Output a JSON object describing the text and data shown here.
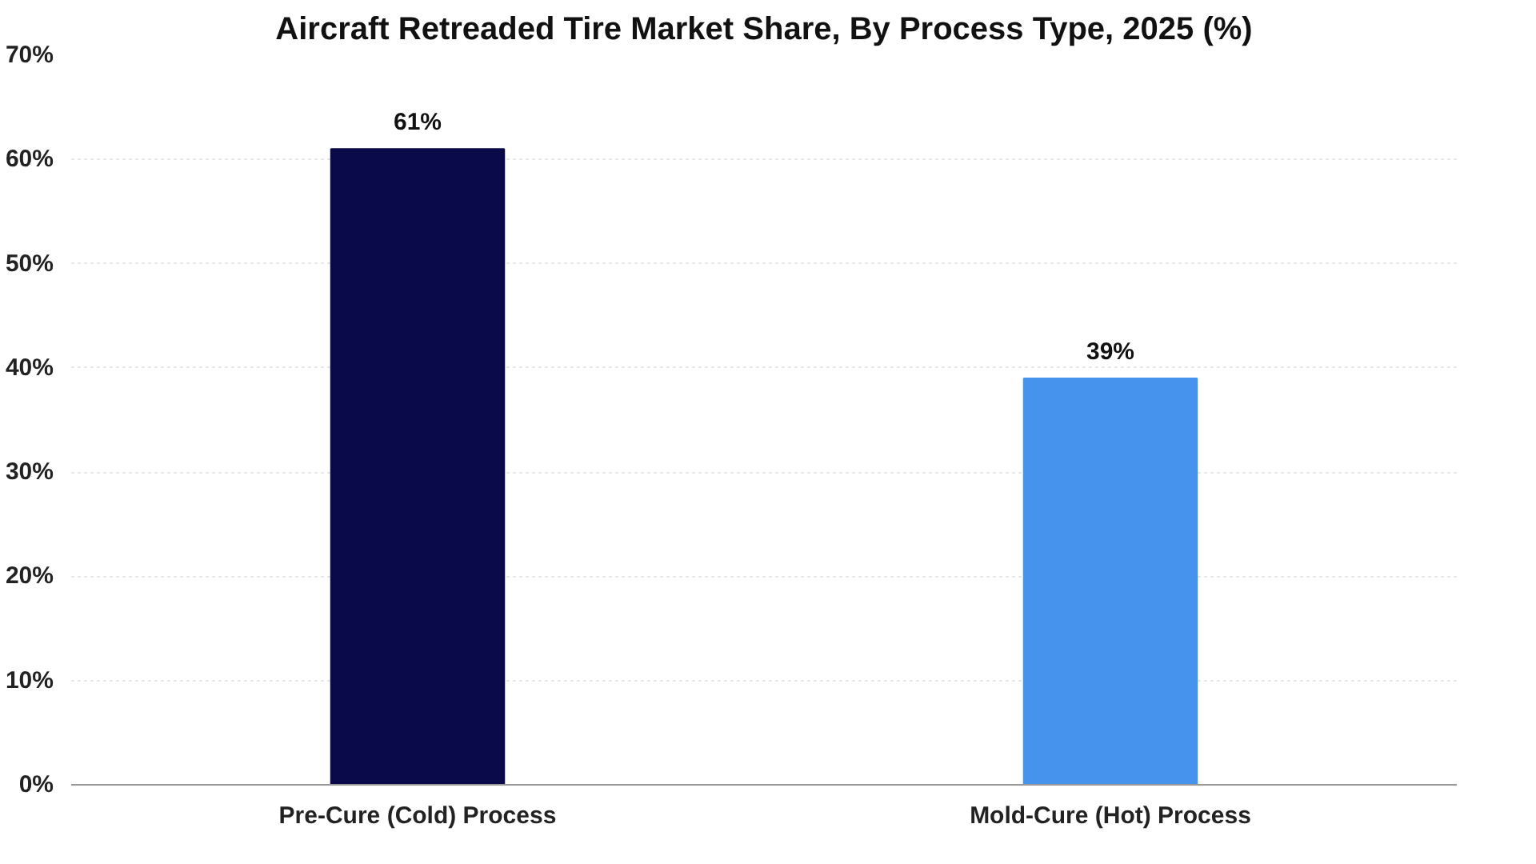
{
  "chart_data": {
    "type": "bar",
    "title": "Aircraft Retreaded Tire Market Share, By Process Type, 2025 (%)",
    "categories": [
      "Pre-Cure (Cold) Process",
      "Mold-Cure (Hot) Process"
    ],
    "values": [
      61,
      39
    ],
    "colors": [
      "#0a0a4a",
      "#4593ec"
    ],
    "value_labels": [
      "61%",
      "39%"
    ],
    "ylim": [
      0,
      70
    ],
    "yticks": [
      {
        "value": 0,
        "label": "0%"
      },
      {
        "value": 10,
        "label": "10%"
      },
      {
        "value": 20,
        "label": "20%"
      },
      {
        "value": 30,
        "label": "30%"
      },
      {
        "value": 40,
        "label": "40%"
      },
      {
        "value": 50,
        "label": "50%"
      },
      {
        "value": 60,
        "label": "60%"
      },
      {
        "value": 70,
        "label": "70%"
      }
    ],
    "grid": "y"
  }
}
